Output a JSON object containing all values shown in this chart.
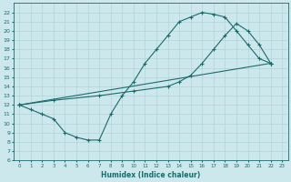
{
  "xlabel": "Humidex (Indice chaleur)",
  "bg_color": "#cce8ec",
  "line_color": "#1a6b6b",
  "grid_color": "#b0d4d8",
  "xlim": [
    -0.5,
    23.5
  ],
  "ylim": [
    6,
    23
  ],
  "xticks": [
    0,
    1,
    2,
    3,
    4,
    5,
    6,
    7,
    8,
    9,
    10,
    11,
    12,
    13,
    14,
    15,
    16,
    17,
    18,
    19,
    20,
    21,
    22,
    23
  ],
  "yticks": [
    6,
    7,
    8,
    9,
    10,
    11,
    12,
    13,
    14,
    15,
    16,
    17,
    18,
    19,
    20,
    21,
    22
  ],
  "line1_x": [
    0,
    1,
    2,
    3,
    4,
    5,
    6,
    7,
    8,
    9,
    10,
    11,
    12,
    13,
    14,
    15,
    16,
    17,
    18,
    19,
    20,
    21,
    22
  ],
  "line1_y": [
    12,
    11.5,
    11,
    10.5,
    9,
    8.5,
    8.2,
    8.2,
    11,
    13,
    14.5,
    16.5,
    18,
    19.5,
    21,
    21.5,
    22,
    21.8,
    21.5,
    20,
    18.5,
    17,
    16.5
  ],
  "line2_x": [
    0,
    22
  ],
  "line2_y": [
    12,
    16.5
  ],
  "line3_x": [
    0,
    3,
    7,
    10,
    13,
    14,
    15,
    16,
    17,
    18,
    19,
    20,
    21,
    22
  ],
  "line3_y": [
    12,
    12.5,
    13.0,
    13.5,
    14.0,
    14.5,
    15.2,
    16.5,
    18.0,
    19.5,
    20.8,
    20.0,
    18.5,
    16.5
  ]
}
